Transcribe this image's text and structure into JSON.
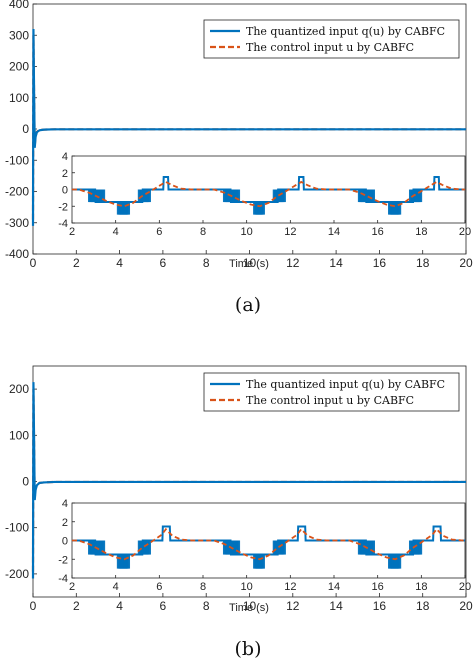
{
  "chart_data": [
    {
      "type": "line",
      "panel": "(a)",
      "caption": "(a)",
      "xlabel": "Time (s)",
      "ylabel": "",
      "xlim": [
        0,
        20
      ],
      "ylim": [
        -400,
        400
      ],
      "xticks": [
        0,
        2,
        4,
        6,
        8,
        10,
        12,
        14,
        16,
        18,
        20
      ],
      "yticks": [
        -400,
        -300,
        -200,
        -100,
        0,
        100,
        200,
        300,
        400
      ],
      "legend_position": "top-right",
      "series": [
        {
          "name": "The quantized input q(u) by CABFC",
          "color": "#0072BD",
          "style": "solid",
          "x": [
            0,
            0.02,
            0.05,
            0.08,
            0.12,
            0.18,
            0.3,
            0.5,
            1,
            2,
            4,
            6,
            8,
            10,
            12,
            14,
            16,
            18,
            20
          ],
          "y": [
            -310,
            320,
            120,
            -60,
            -25,
            -10,
            -4,
            -2,
            -1,
            -1,
            -1,
            -1,
            -1,
            -1,
            -1,
            -1,
            -1,
            -1,
            -1
          ]
        },
        {
          "name": "The control input u by CABFC",
          "color": "#D95319",
          "style": "dashed",
          "x": [
            0,
            0.02,
            0.05,
            0.08,
            0.12,
            0.18,
            0.3,
            0.5,
            1,
            2,
            4,
            6,
            8,
            10,
            12,
            14,
            16,
            18,
            20
          ],
          "y": [
            -290,
            300,
            110,
            -55,
            -22,
            -9,
            -3,
            -2,
            -1,
            -1,
            -1,
            -1,
            -1,
            -1,
            -1,
            -1,
            -1,
            -1,
            -1
          ]
        }
      ],
      "inset": {
        "xlim": [
          2,
          20
        ],
        "ylim": [
          -4,
          4
        ],
        "xticks": [
          2,
          4,
          6,
          8,
          10,
          12,
          14,
          16,
          18,
          20
        ],
        "yticks": [
          -4,
          -2,
          0,
          2,
          4
        ],
        "period": 6.2,
        "profile_t": [
          0,
          0.3,
          0.8,
          1.2,
          1.6,
          2.0,
          2.4,
          2.8,
          3.2,
          3.6,
          4.1,
          4.3,
          4.6,
          5.0,
          5.5,
          6.2
        ],
        "profile_u": [
          0,
          0,
          -0.4,
          -0.9,
          -1.4,
          -1.8,
          -2.0,
          -1.6,
          -0.8,
          -0.2,
          0.6,
          0.9,
          0.5,
          0.1,
          0,
          0
        ],
        "quant_step": 1.5
      }
    },
    {
      "type": "line",
      "panel": "(b)",
      "caption": "(b)",
      "xlabel": "Time (s)",
      "ylabel": "",
      "xlim": [
        0,
        20
      ],
      "ylim": [
        -250,
        250
      ],
      "xticks": [
        0,
        2,
        4,
        6,
        8,
        10,
        12,
        14,
        16,
        18,
        20
      ],
      "yticks": [
        -200,
        -100,
        0,
        100,
        200
      ],
      "legend_position": "top-right",
      "series": [
        {
          "name": "The quantized input q(u) by CABFC",
          "color": "#0072BD",
          "style": "solid",
          "x": [
            0,
            0.02,
            0.05,
            0.08,
            0.12,
            0.18,
            0.3,
            0.5,
            1,
            2,
            4,
            6,
            8,
            10,
            12,
            14,
            16,
            18,
            20
          ],
          "y": [
            -210,
            215,
            90,
            -40,
            -18,
            -8,
            -3,
            -2,
            -1,
            -1,
            -1,
            -1,
            -1,
            -1,
            -1,
            -1,
            -1,
            -1,
            -1
          ]
        },
        {
          "name": "The control input u by CABFC",
          "color": "#D95319",
          "style": "dashed",
          "x": [
            0,
            0.02,
            0.05,
            0.08,
            0.12,
            0.18,
            0.3,
            0.5,
            1,
            2,
            4,
            6,
            8,
            10,
            12,
            14,
            16,
            18,
            20
          ],
          "y": [
            -195,
            200,
            80,
            -35,
            -15,
            -7,
            -3,
            -2,
            -1,
            -1,
            -1,
            -1,
            -1,
            -1,
            -1,
            -1,
            -1,
            -1,
            -1
          ]
        }
      ],
      "inset": {
        "xlim": [
          2,
          20
        ],
        "ylim": [
          -4,
          4
        ],
        "xticks": [
          2,
          4,
          6,
          8,
          10,
          12,
          14,
          16,
          18,
          20
        ],
        "yticks": [
          -4,
          -2,
          0,
          2,
          4
        ],
        "period": 6.2,
        "profile_t": [
          0,
          0.3,
          0.8,
          1.2,
          1.6,
          2.0,
          2.4,
          2.8,
          3.2,
          3.6,
          4.1,
          4.3,
          4.6,
          5.0,
          5.5,
          6.2
        ],
        "profile_u": [
          0,
          0,
          -0.4,
          -0.9,
          -1.4,
          -1.8,
          -2.0,
          -1.6,
          -0.8,
          -0.2,
          0.6,
          1.2,
          0.5,
          0.1,
          0,
          0
        ],
        "quant_step": 1.5
      }
    }
  ]
}
